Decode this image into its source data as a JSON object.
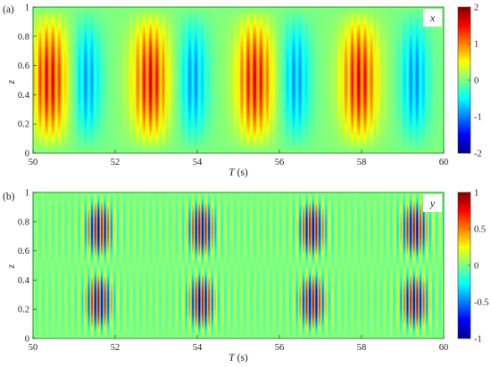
{
  "colormap": "jet",
  "colors": {
    "plot_border": "#2e8b2e",
    "text": "#222222",
    "label_box": "#ffffff"
  },
  "chart_data": [
    {
      "type": "heatmap",
      "panel_label": "(a)",
      "series_label": "x",
      "xlabel_var": "T",
      "xlabel_unit": "(s)",
      "ylabel": "z",
      "xlim": [
        50,
        60
      ],
      "ylim": [
        0,
        1
      ],
      "xticks": [
        "50",
        "52",
        "54",
        "56",
        "58",
        "60"
      ],
      "yticks": [
        "0",
        "0.2",
        "0.4",
        "0.6",
        "0.8",
        "1"
      ],
      "colorbar": {
        "min": -2,
        "max": 2,
        "ticks": [
          "2",
          "1",
          "0",
          "-1",
          "-2"
        ]
      },
      "field_description_values": {
        "z_profile": "sin(pi z)",
        "envelope_peak_T": [
          50.4,
          52.85,
          55.4,
          57.95
        ],
        "envelope_trough_T": [
          51.3,
          53.9,
          56.4,
          59.3
        ],
        "envelope_amplitude": 1.75,
        "stripe_count_per_unit_T": 6.3
      }
    },
    {
      "type": "heatmap",
      "panel_label": "(b)",
      "series_label": "y",
      "xlabel_var": "T",
      "xlabel_unit": "(s)",
      "ylabel": "z",
      "xlim": [
        50,
        60
      ],
      "ylim": [
        0,
        1
      ],
      "xticks": [
        "50",
        "52",
        "54",
        "56",
        "58",
        "60"
      ],
      "yticks": [
        "0",
        "0.2",
        "0.4",
        "0.6",
        "0.8",
        "1"
      ],
      "colorbar": {
        "min": -1,
        "max": 1,
        "ticks": [
          "1",
          "0.5",
          "0",
          "-0.5",
          "-1"
        ]
      },
      "field_description_values": {
        "z_profile": "sin(2 pi z)",
        "burst_center_T": [
          51.6,
          54.1,
          56.8,
          59.3
        ],
        "burst_amplitude": 0.95,
        "stripe_count_per_unit_T": 6.3
      }
    }
  ]
}
